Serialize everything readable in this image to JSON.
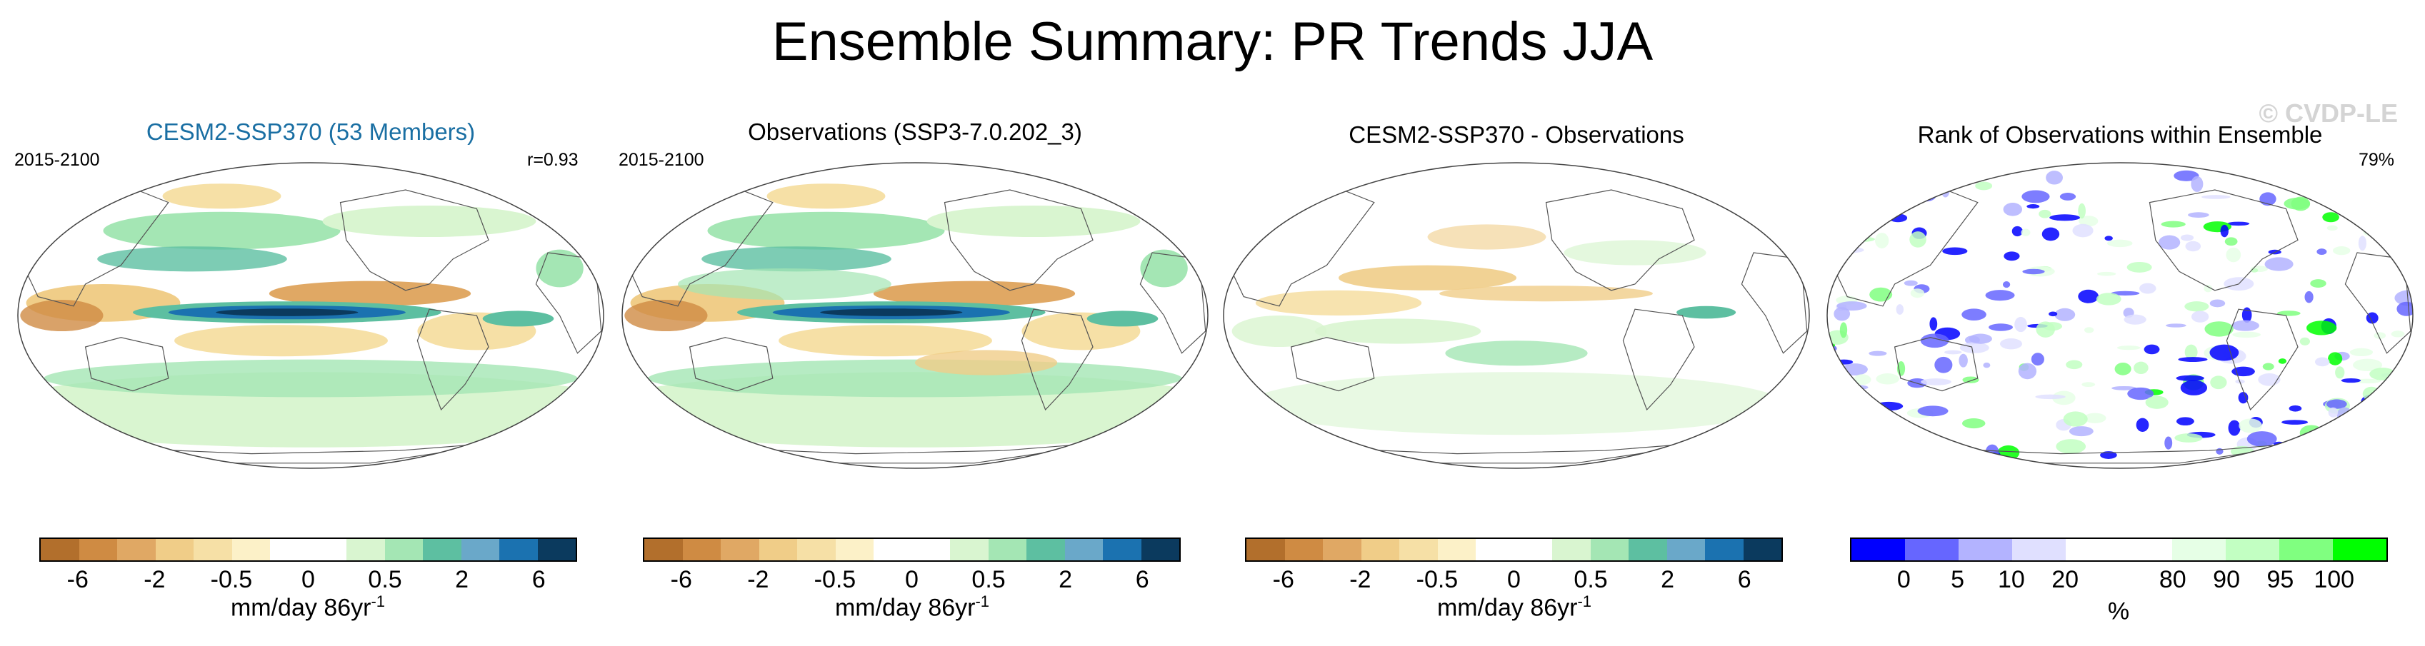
{
  "title": "Ensemble Summary: PR Trends JJA",
  "watermark": "© CVDP-LE",
  "colors": {
    "trend_scale": [
      "#b26f2c",
      "#cf8b43",
      "#e0a864",
      "#f0cd88",
      "#f6e0a6",
      "#fcf1c8",
      "#ffffff",
      "#ffffff",
      "#d9f5d0",
      "#a4e6b4",
      "#5dbfa1",
      "#6aa8c9",
      "#1b72b0",
      "#0b3a5e"
    ],
    "rank_scale": [
      "#0000ff",
      "#6666ff",
      "#b3b3ff",
      "#e0e0ff",
      "#ffffff",
      "#ffffff",
      "#e6ffe6",
      "#c2ffc2",
      "#80ff80",
      "#00ff00"
    ],
    "accent_title": "#1a6fa3"
  },
  "chart_data": [
    {
      "type": "heatmap",
      "title": "CESM2-SSP370 (53 Members)",
      "period": "2015-2100",
      "stat": "r=0.93",
      "colorbar": {
        "ticks": [
          "-6",
          "-2",
          "-0.5",
          "0",
          "0.5",
          "2",
          "6"
        ],
        "label": "mm/day 86yr",
        "label_sup": "-1"
      },
      "map": "Robinson world map, Pacific-centered"
    },
    {
      "type": "heatmap",
      "title": "Observations (SSP3-7.0.202_3)",
      "period": "2015-2100",
      "stat": "",
      "colorbar": {
        "ticks": [
          "-6",
          "-2",
          "-0.5",
          "0",
          "0.5",
          "2",
          "6"
        ],
        "label": "mm/day 86yr",
        "label_sup": "-1"
      },
      "map": "Robinson world map, Pacific-centered"
    },
    {
      "type": "heatmap",
      "title": "CESM2-SSP370 - Observations",
      "period": "",
      "stat": "",
      "colorbar": {
        "ticks": [
          "-6",
          "-2",
          "-0.5",
          "0",
          "0.5",
          "2",
          "6"
        ],
        "label": "mm/day 86yr",
        "label_sup": "-1"
      },
      "map": "Robinson world map, Pacific-centered"
    },
    {
      "type": "heatmap",
      "title": "Rank of Observations within Ensemble",
      "period": "",
      "stat": "79%",
      "colorbar": {
        "ticks": [
          "0",
          "5",
          "10",
          "20",
          "80",
          "90",
          "95",
          "100"
        ],
        "label": "%",
        "label_sup": ""
      },
      "map": "Robinson world map, Pacific-centered"
    }
  ]
}
